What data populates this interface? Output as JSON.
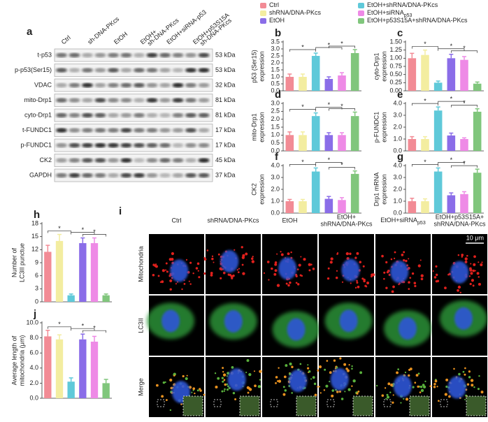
{
  "legend": [
    {
      "name": "Ctrl",
      "color": "#f28b95"
    },
    {
      "name": "shRNA/DNA-PKcs",
      "color": "#f3eda0"
    },
    {
      "name": "EtOH",
      "color": "#8a6de8"
    },
    {
      "name": "EtOH+shRNA/DNA-PKcs",
      "color": "#5fc9d9"
    },
    {
      "name": "EtOH+siRNA",
      "sub": "p53",
      "color": "#ee8ae6"
    },
    {
      "name": "EtOH+p53S15A+shRNA/DNA-PKcs",
      "color": "#80c67c"
    }
  ],
  "panel_a": {
    "label": "a",
    "lanes": [
      [
        "Ctrl"
      ],
      [
        "sh-DNA-PKcs"
      ],
      [
        "EtOH"
      ],
      [
        "EtOH+",
        "sh-DNA-PKcs"
      ],
      [
        "EtOH+siRNA-p53"
      ],
      [
        "EtOH+p53S15A",
        "sh-DNA-PKcs"
      ]
    ],
    "rows": [
      {
        "name": "t-p53",
        "size": "53 kDa"
      },
      {
        "name": "p-p53(Ser15)",
        "size": "53 kDa"
      },
      {
        "name": "VDAC",
        "size": "32 kDa"
      },
      {
        "name": "mito-Drp1",
        "size": "81 kDa"
      },
      {
        "name": "cyto-Drp1",
        "size": "81 kDa"
      },
      {
        "name": "t-FUNDC1",
        "size": "17 kDa"
      },
      {
        "name": "p-FUNDC1",
        "size": "17 kDa"
      },
      {
        "name": "CK2",
        "size": "45 kDa"
      },
      {
        "name": "GAPDH",
        "size": "37 kDa"
      }
    ]
  },
  "chart_data": [
    {
      "type": "bar",
      "label": "b",
      "ylabel": [
        "p53 (Ser15)",
        "expression"
      ],
      "ylim": [
        0,
        3.5
      ],
      "yticks": [
        {
          "value": 0,
          "label": "0.0"
        },
        0.5,
        {
          "value": 1,
          "label": "1.0"
        },
        1.5,
        {
          "value": 2,
          "label": "2.0"
        },
        2.5,
        {
          "value": 3,
          "label": "3.0"
        },
        3.5
      ],
      "values": [
        1.0,
        1.0,
        2.5,
        0.85,
        1.1,
        2.7
      ],
      "errors": [
        0.2,
        0.2,
        0.2,
        0.15,
        0.2,
        0.25
      ],
      "colors": [
        "#f28b95",
        "#f3eda0",
        "#5fc9d9",
        "#8a6de8",
        "#ee8ae6",
        "#80c67c"
      ],
      "significance": "*"
    },
    {
      "type": "bar",
      "label": "c",
      "ylabel": [
        "cyto-Drp1",
        "expression"
      ],
      "ylim": [
        0,
        1.5
      ],
      "yticks": [
        {
          "value": 0,
          "label": "0.00"
        },
        0.25,
        {
          "value": 0.5,
          "label": "0.50"
        },
        0.75,
        {
          "value": 1,
          "label": "1.00"
        },
        1.25,
        {
          "value": 1.5,
          "label": "1.50"
        }
      ],
      "values": [
        1.0,
        1.1,
        0.25,
        1.0,
        0.95,
        0.22
      ],
      "errors": [
        0.15,
        0.15,
        0.05,
        0.12,
        0.1,
        0.05
      ],
      "colors": [
        "#f28b95",
        "#f3eda0",
        "#5fc9d9",
        "#8a6de8",
        "#ee8ae6",
        "#80c67c"
      ],
      "significance": "*"
    },
    {
      "type": "bar",
      "label": "d",
      "ylabel": [
        "mito-Drp1",
        "expression"
      ],
      "ylim": [
        0,
        3.0
      ],
      "yticks": [
        {
          "value": 0,
          "label": "0.0"
        },
        0.5,
        {
          "value": 1,
          "label": "1.0"
        },
        1.5,
        {
          "value": 2,
          "label": "2.0"
        },
        2.5,
        {
          "value": 3,
          "label": "3.0"
        }
      ],
      "values": [
        1.0,
        1.0,
        2.2,
        1.0,
        1.0,
        2.2
      ],
      "errors": [
        0.2,
        0.2,
        0.2,
        0.15,
        0.15,
        0.25
      ],
      "colors": [
        "#f28b95",
        "#f3eda0",
        "#5fc9d9",
        "#8a6de8",
        "#ee8ae6",
        "#80c67c"
      ],
      "significance": "*"
    },
    {
      "type": "bar",
      "label": "e",
      "ylabel": [
        "p-FUNDC1",
        "expression"
      ],
      "ylim": [
        0,
        4.0
      ],
      "yticks": [
        {
          "value": 0,
          "label": "0.0"
        },
        {
          "value": 1,
          "label": "1.0"
        },
        {
          "value": 2,
          "label": "2.0"
        },
        {
          "value": 3,
          "label": "3.0"
        },
        {
          "value": 4,
          "label": "4.0"
        }
      ],
      "values": [
        1.0,
        1.0,
        3.4,
        1.3,
        1.0,
        3.3
      ],
      "errors": [
        0.2,
        0.2,
        0.3,
        0.2,
        0.1,
        0.25
      ],
      "colors": [
        "#f28b95",
        "#f3eda0",
        "#5fc9d9",
        "#8a6de8",
        "#ee8ae6",
        "#80c67c"
      ],
      "significance": "*"
    },
    {
      "type": "bar",
      "label": "f",
      "ylabel": [
        "CK2",
        "expression"
      ],
      "ylim": [
        0,
        4.0
      ],
      "yticks": [
        {
          "value": 0,
          "label": "0.0"
        },
        {
          "value": 1,
          "label": "1.0"
        },
        {
          "value": 2,
          "label": "2.0"
        },
        {
          "value": 3,
          "label": "3.0"
        },
        {
          "value": 4,
          "label": "4.0"
        }
      ],
      "values": [
        1.0,
        1.0,
        3.5,
        1.2,
        1.1,
        3.3
      ],
      "errors": [
        0.15,
        0.15,
        0.3,
        0.2,
        0.2,
        0.25
      ],
      "colors": [
        "#f28b95",
        "#f3eda0",
        "#5fc9d9",
        "#8a6de8",
        "#ee8ae6",
        "#80c67c"
      ],
      "significance": "*"
    },
    {
      "type": "bar",
      "label": "g",
      "ylabel": [
        "Drp1 mRNA",
        "expression"
      ],
      "ylim": [
        0,
        4.0
      ],
      "yticks": [
        {
          "value": 0,
          "label": "0.0"
        },
        {
          "value": 1,
          "label": "1.0"
        },
        {
          "value": 2,
          "label": "2.0"
        },
        {
          "value": 3,
          "label": "3.0"
        },
        {
          "value": 4,
          "label": "4.0"
        }
      ],
      "values": [
        1.0,
        1.0,
        3.5,
        1.5,
        1.6,
        3.4
      ],
      "errors": [
        0.25,
        0.2,
        0.3,
        0.2,
        0.2,
        0.3
      ],
      "colors": [
        "#f28b95",
        "#f3eda0",
        "#5fc9d9",
        "#8a6de8",
        "#ee8ae6",
        "#80c67c"
      ],
      "significance": "*"
    },
    {
      "type": "bar",
      "label": "h",
      "ylabel": [
        "Number of",
        "LC3II punctue"
      ],
      "ylim": [
        0,
        18
      ],
      "yticks": [
        0,
        3,
        6,
        9,
        12,
        15,
        18
      ],
      "values": [
        11.5,
        14,
        1.5,
        13.5,
        13.5,
        1.5
      ],
      "errors": [
        1.5,
        1.5,
        0.3,
        1.2,
        1.2,
        0.3
      ],
      "colors": [
        "#f28b95",
        "#f3eda0",
        "#5fc9d9",
        "#8a6de8",
        "#ee8ae6",
        "#80c67c"
      ],
      "significance": "*"
    },
    {
      "type": "bar",
      "label": "j",
      "ylabel": [
        "Average length of",
        "mitochondria (μm)"
      ],
      "ylim": [
        0,
        10
      ],
      "yticks": [
        {
          "value": 0,
          "label": "0.0"
        },
        {
          "value": 2,
          "label": "2.0"
        },
        {
          "value": 4,
          "label": "4.0"
        },
        {
          "value": 6,
          "label": "6.0"
        },
        {
          "value": 8,
          "label": "8.0"
        },
        {
          "value": 10,
          "label": "10.0"
        }
      ],
      "values": [
        8.2,
        7.8,
        2.2,
        7.8,
        7.5,
        2.0
      ],
      "errors": [
        0.8,
        0.6,
        0.5,
        0.7,
        0.7,
        0.5
      ],
      "colors": [
        "#f28b95",
        "#f3eda0",
        "#5fc9d9",
        "#8a6de8",
        "#ee8ae6",
        "#80c67c"
      ],
      "significance": "*"
    }
  ],
  "panel_i": {
    "label": "i",
    "columns": [
      [
        "Ctrl"
      ],
      [
        "shRNA/DNA-PKcs"
      ],
      [
        "EtOH"
      ],
      [
        "EtOH+",
        "shRNA/DNA-PKcs"
      ],
      [
        {
          "text": "EtOH+siRNA",
          "sub": "p53"
        }
      ],
      [
        "EtOH+p53S15A+",
        "shRNA/DNA-PKcs"
      ]
    ],
    "rows": [
      "Mitochondria",
      "LC3II",
      "Merge"
    ],
    "scale_bar": "10 μm"
  }
}
